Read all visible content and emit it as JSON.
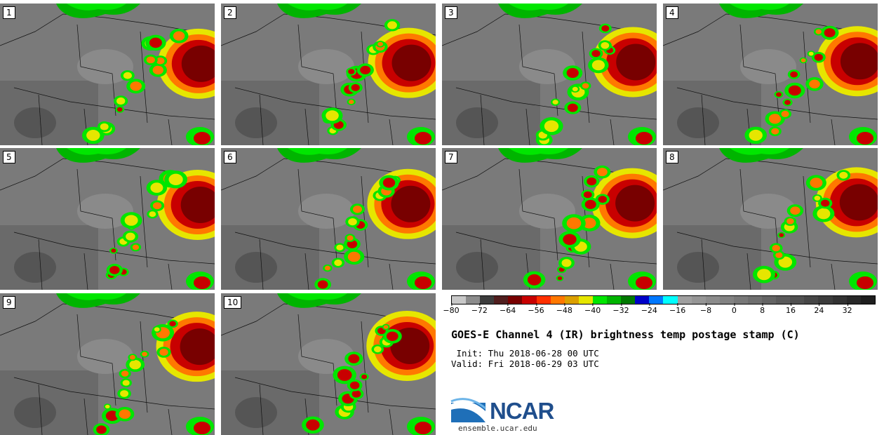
{
  "panels": [
    {
      "label": "1"
    },
    {
      "label": "2"
    },
    {
      "label": "3"
    },
    {
      "label": "4"
    },
    {
      "label": "5"
    },
    {
      "label": "6"
    },
    {
      "label": "7"
    },
    {
      "label": "8"
    },
    {
      "label": "9"
    },
    {
      "label": "10"
    }
  ],
  "colorbar": {
    "colors": [
      "#c8c8c8",
      "#8c8c8c",
      "#3c3c3c",
      "#501e1e",
      "#780000",
      "#c80000",
      "#ff3000",
      "#ff7800",
      "#dca000",
      "#e6e600",
      "#00e600",
      "#00b400",
      "#007800",
      "#0000c8",
      "#0078ff",
      "#00ffff",
      "#a0a0a0",
      "#969696",
      "#8c8c8c",
      "#828282",
      "#787878",
      "#6e6e6e",
      "#646464",
      "#5a5a5a",
      "#505050",
      "#464646",
      "#3c3c3c",
      "#323232",
      "#282828",
      "#1e1e1e"
    ],
    "ticks": [
      "−80",
      "−72",
      "−64",
      "−56",
      "−48",
      "−40",
      "−32",
      "−24",
      "−16",
      "−8",
      "0",
      "8",
      "16",
      "24",
      "32"
    ]
  },
  "title": "GOES-E Channel 4 (IR) brightness temp postage stamp (C)",
  "init": " Init: Thu 2018-06-28 00 UTC",
  "valid": "Valid: Fri 2018-06-29 03 UTC",
  "logo_text": "NCAR",
  "website": "ensemble.ucar.edu"
}
